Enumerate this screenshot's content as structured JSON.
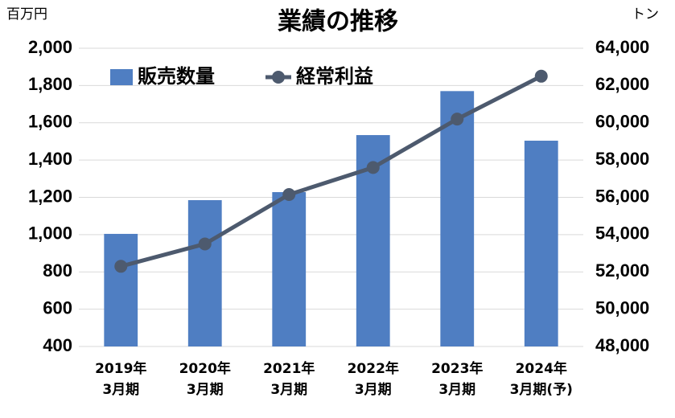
{
  "chart_data": {
    "type": "bar",
    "title": "業績の推移",
    "y_label": "百万円",
    "y2_label": "トン",
    "categories": [
      "2019年\n3月期",
      "2020年\n3月期",
      "2021年\n3月期",
      "2022年\n3月期",
      "2023年\n3月期",
      "2024年\n3月期(予)"
    ],
    "series": [
      {
        "name": "販売数量",
        "type": "bar",
        "color": "#4f7ec2",
        "axis": "y2",
        "values": [
          54040,
          55850,
          56280,
          59340,
          61700,
          59040
        ]
      },
      {
        "name": "経常利益",
        "type": "line",
        "color": "#4d5a6e",
        "axis": "y",
        "values": [
          830,
          950,
          1215,
          1360,
          1620,
          1850
        ]
      }
    ],
    "ylim": [
      400,
      2000
    ],
    "yticks": [
      400,
      600,
      800,
      {
        "value": 1000,
        "label": "1,000"
      },
      {
        "value": 1200,
        "label": "1,200"
      },
      {
        "value": 1400,
        "label": "1,400"
      },
      {
        "value": 1600,
        "label": "1,600"
      },
      {
        "value": 1800,
        "label": "1,800"
      },
      {
        "value": 2000,
        "label": "2,000"
      }
    ],
    "y2lim": [
      48000,
      64000
    ],
    "y2ticks": [
      {
        "value": 48000,
        "label": "48,000"
      },
      {
        "value": 50000,
        "label": "50,000"
      },
      {
        "value": 52000,
        "label": "52,000"
      },
      {
        "value": 54000,
        "label": "54,000"
      },
      {
        "value": 56000,
        "label": "56,000"
      },
      {
        "value": 58000,
        "label": "58,000"
      },
      {
        "value": 60000,
        "label": "60,000"
      },
      {
        "value": 62000,
        "label": "62,000"
      },
      {
        "value": 64000,
        "label": "64,000"
      }
    ],
    "grid": true,
    "legend": "top-left"
  }
}
